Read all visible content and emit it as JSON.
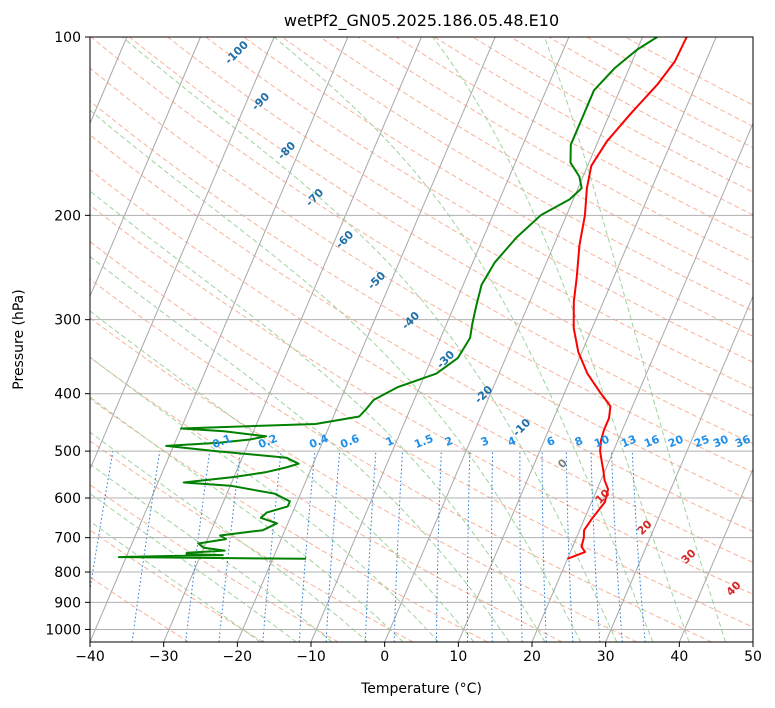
{
  "chart_data": {
    "type": "line",
    "title": "wetPf2_GN05.2025.186.05.48.E10",
    "xlabel": "Temperature (°C)",
    "ylabel": "Pressure (hPa)",
    "xlim": [
      -40,
      50
    ],
    "ylim": [
      1050,
      100
    ],
    "y_scale": "log",
    "grid": true,
    "x_ticks": [
      "−40",
      "−30",
      "−20",
      "−10",
      "0",
      "10",
      "20",
      "30",
      "40",
      "50"
    ],
    "y_ticks": [
      "100",
      "200",
      "300",
      "400",
      "500",
      "600",
      "700",
      "800",
      "900",
      "1000"
    ],
    "series": [
      {
        "role": "temperature",
        "color": "#ff0000",
        "points": [
          [
            20.0,
            760
          ],
          [
            21.5,
            745
          ],
          [
            22.0,
            740
          ],
          [
            21.2,
            725
          ],
          [
            21.0,
            700
          ],
          [
            20.6,
            680
          ],
          [
            21.0,
            650
          ],
          [
            21.8,
            610
          ],
          [
            21.5,
            580
          ],
          [
            20.5,
            560
          ],
          [
            19.8,
            540
          ],
          [
            19.0,
            520
          ],
          [
            18.2,
            500
          ],
          [
            17.7,
            480
          ],
          [
            17.5,
            460
          ],
          [
            17.5,
            440
          ],
          [
            17.0,
            420
          ],
          [
            15.0,
            400
          ],
          [
            12.0,
            370
          ],
          [
            9.5,
            340
          ],
          [
            7.5,
            310
          ],
          [
            6.0,
            280
          ],
          [
            5.0,
            255
          ],
          [
            3.5,
            225
          ],
          [
            2.5,
            200
          ],
          [
            1.2,
            180
          ],
          [
            0.5,
            165
          ],
          [
            1.2,
            150
          ],
          [
            2.8,
            135
          ],
          [
            4.8,
            120
          ],
          [
            5.8,
            110
          ],
          [
            6.0,
            100
          ]
        ]
      },
      {
        "role": "dewpoint",
        "color": "#008000",
        "points": [
          [
            -15.5,
            760
          ],
          [
            -41.0,
            755
          ],
          [
            -35.0,
            752
          ],
          [
            -27.0,
            749
          ],
          [
            -32.0,
            746
          ],
          [
            -32.0,
            742
          ],
          [
            -27.0,
            736
          ],
          [
            -30.0,
            728
          ],
          [
            -31.0,
            716
          ],
          [
            -27.5,
            704
          ],
          [
            -28.5,
            694
          ],
          [
            -23.0,
            680
          ],
          [
            -21.5,
            662
          ],
          [
            -24.0,
            648
          ],
          [
            -23.5,
            635
          ],
          [
            -21.0,
            620
          ],
          [
            -21.0,
            608
          ],
          [
            -23.5,
            590
          ],
          [
            -30.0,
            572
          ],
          [
            -36.5,
            565
          ],
          [
            -30.0,
            553
          ],
          [
            -26.0,
            543
          ],
          [
            -23.5,
            533
          ],
          [
            -22.0,
            525
          ],
          [
            -24.0,
            513
          ],
          [
            -34.0,
            500
          ],
          [
            -41.0,
            490
          ],
          [
            -34.0,
            484
          ],
          [
            -30.0,
            478
          ],
          [
            -28.0,
            472
          ],
          [
            -34.0,
            463
          ],
          [
            -40.0,
            458
          ],
          [
            -22.0,
            450
          ],
          [
            -16.5,
            437
          ],
          [
            -16.0,
            425
          ],
          [
            -15.5,
            410
          ],
          [
            -13.0,
            390
          ],
          [
            -8.5,
            370
          ],
          [
            -6.5,
            348
          ],
          [
            -6.0,
            322
          ],
          [
            -6.5,
            305
          ],
          [
            -7.0,
            285
          ],
          [
            -7.5,
            262
          ],
          [
            -7.0,
            240
          ],
          [
            -5.5,
            218
          ],
          [
            -3.5,
            200
          ],
          [
            -0.5,
            188
          ],
          [
            0.5,
            180
          ],
          [
            -0.5,
            172
          ],
          [
            -2.5,
            163
          ],
          [
            -3.5,
            152
          ],
          [
            -3.5,
            137
          ],
          [
            -3.5,
            123
          ],
          [
            -2.0,
            113
          ],
          [
            0.0,
            105
          ],
          [
            2.0,
            100
          ]
        ]
      }
    ],
    "dry_adiabat_labels": [
      "-100",
      "-90",
      "-80",
      "-70",
      "-60",
      "-50",
      "-40",
      "-30",
      "-20",
      "-10"
    ],
    "dry_adiabat_label_values": [
      -100,
      -90,
      -80,
      -70,
      -60,
      -50,
      -40,
      -30,
      -20,
      -10
    ],
    "moist_adiabat_labels": [
      "0",
      "10",
      "20",
      "30",
      "40"
    ],
    "moist_adiabat_label_values": [
      0,
      10,
      20,
      30,
      40
    ],
    "mixing_ratio_labels": [
      "0.1",
      "0.2",
      "0.4",
      "0.6",
      "1",
      "1.5",
      "2",
      "3",
      "4",
      "6",
      "8",
      "10",
      "13",
      "16",
      "20",
      "25",
      "30",
      "36"
    ],
    "mixing_ratio_values": [
      0.1,
      0.2,
      0.4,
      0.6,
      1,
      1.5,
      2,
      3,
      4,
      6,
      8,
      10,
      13,
      16,
      20,
      25,
      30,
      36
    ],
    "colors": {
      "isobar": "#b0b0b0",
      "isotherm": "#a8a8a8",
      "dry_adiabat": "#f7b29a",
      "moist_adiabat": "#9fd39f",
      "mixing_ratio": "#1f77d4",
      "dry_label": "#1f6fa8",
      "moist_label": "#d62728",
      "mixing_label": "#1f8fe8",
      "zero_label": "#808080",
      "temperature": "#ff0000",
      "dewpoint": "#008000"
    }
  }
}
